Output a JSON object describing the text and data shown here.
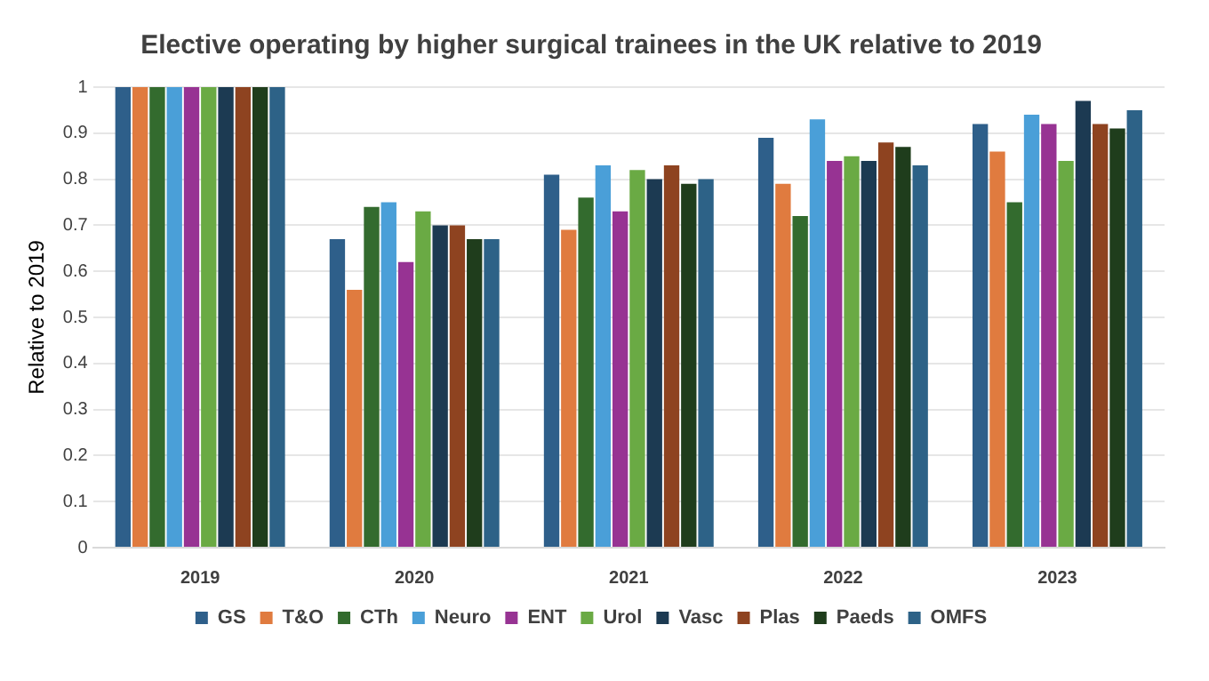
{
  "chart_data": {
    "type": "bar",
    "title": "Elective operating by higher surgical trainees in the UK relative to 2019",
    "ylabel": "Relative to 2019",
    "categories": [
      "2019",
      "2020",
      "2021",
      "2022",
      "2023"
    ],
    "series": [
      {
        "name": "GS",
        "color": "#2e5f8a",
        "values": [
          1,
          0.67,
          0.81,
          0.89,
          0.92
        ]
      },
      {
        "name": "T&O",
        "color": "#e07b3f",
        "values": [
          1,
          0.56,
          0.69,
          0.79,
          0.86
        ]
      },
      {
        "name": "CTh",
        "color": "#336b2e",
        "values": [
          1,
          0.74,
          0.76,
          0.72,
          0.75
        ]
      },
      {
        "name": "Neuro",
        "color": "#4a9fd8",
        "values": [
          1,
          0.75,
          0.83,
          0.93,
          0.94
        ]
      },
      {
        "name": "ENT",
        "color": "#973393",
        "values": [
          1,
          0.62,
          0.73,
          0.84,
          0.92
        ]
      },
      {
        "name": "Urol",
        "color": "#6aaa44",
        "values": [
          1,
          0.73,
          0.82,
          0.85,
          0.84
        ]
      },
      {
        "name": "Vasc",
        "color": "#1c3a52",
        "values": [
          1,
          0.7,
          0.8,
          0.84,
          0.97
        ]
      },
      {
        "name": "Plas",
        "color": "#8e4320",
        "values": [
          1,
          0.7,
          0.83,
          0.88,
          0.92
        ]
      },
      {
        "name": "Paeds",
        "color": "#1f3d1c",
        "values": [
          1,
          0.67,
          0.79,
          0.87,
          0.91
        ]
      },
      {
        "name": "OMFS",
        "color": "#2d6287",
        "values": [
          1,
          0.67,
          0.8,
          0.83,
          0.95
        ]
      }
    ],
    "ylim": [
      0,
      1
    ],
    "yticks": [
      0,
      0.1,
      0.2,
      0.3,
      0.4,
      0.5,
      0.6,
      0.7,
      0.8,
      0.9,
      1
    ],
    "grid": "y",
    "legend": "bottom"
  }
}
